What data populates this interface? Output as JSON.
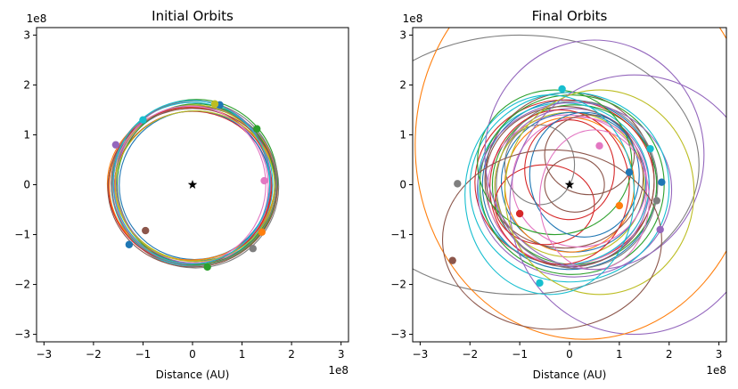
{
  "chart_data": [
    {
      "type": "scatter",
      "title": "Initial Orbits",
      "xlabel": "Distance (AU)",
      "ylabel": "",
      "xlim": [
        -3.15,
        3.15
      ],
      "ylim": [
        -3.15,
        3.15
      ],
      "x_ticks": [
        -3,
        -2,
        -1,
        0,
        1,
        2,
        3
      ],
      "y_ticks": [
        -3,
        -2,
        -1,
        0,
        1,
        2,
        3
      ],
      "x_offset_label": "1e8",
      "y_offset_label": "1e8",
      "star": {
        "x": 0,
        "y": 0,
        "marker": "black-star"
      },
      "orbits": [
        {
          "cx": 0.05,
          "cy": 0.02,
          "a": 1.62,
          "b": 1.55,
          "color": "#1f77b4"
        },
        {
          "cx": 0.02,
          "cy": -0.02,
          "a": 1.7,
          "b": 1.6,
          "color": "#ff7f0e"
        },
        {
          "cx": 0.08,
          "cy": 0.05,
          "a": 1.64,
          "b": 1.66,
          "color": "#2ca02c"
        },
        {
          "cx": 0.0,
          "cy": -0.05,
          "a": 1.58,
          "b": 1.52,
          "color": "#d62728"
        },
        {
          "cx": -0.04,
          "cy": 0.03,
          "a": 1.6,
          "b": 1.62,
          "color": "#9467bd"
        },
        {
          "cx": 0.03,
          "cy": 0.0,
          "a": 1.66,
          "b": 1.58,
          "color": "#8c564b"
        },
        {
          "cx": -0.02,
          "cy": -0.03,
          "a": 1.55,
          "b": 1.6,
          "color": "#e377c2"
        },
        {
          "cx": 0.06,
          "cy": -0.04,
          "a": 1.68,
          "b": 1.63,
          "color": "#7f7f7f"
        },
        {
          "cx": 0.01,
          "cy": 0.04,
          "a": 1.57,
          "b": 1.56,
          "color": "#bcbd22"
        },
        {
          "cx": -0.01,
          "cy": 0.01,
          "a": 1.63,
          "b": 1.64,
          "color": "#17becf"
        },
        {
          "cx": 0.04,
          "cy": -0.01,
          "a": 1.52,
          "b": 1.49,
          "color": "#1f77b4"
        },
        {
          "cx": -0.03,
          "cy": 0.02,
          "a": 1.69,
          "b": 1.53,
          "color": "#ff7f0e"
        },
        {
          "cx": 0.07,
          "cy": 0.01,
          "a": 1.59,
          "b": 1.61,
          "color": "#2ca02c"
        },
        {
          "cx": -0.05,
          "cy": -0.02,
          "a": 1.65,
          "b": 1.57,
          "color": "#d62728"
        },
        {
          "cx": 0.02,
          "cy": 0.06,
          "a": 1.56,
          "b": 1.63,
          "color": "#9467bd"
        },
        {
          "cx": 0.0,
          "cy": -0.06,
          "a": 1.71,
          "b": 1.59,
          "color": "#8c564b"
        },
        {
          "cx": -0.06,
          "cy": 0.0,
          "a": 1.54,
          "b": 1.58,
          "color": "#e377c2"
        },
        {
          "cx": 0.03,
          "cy": 0.03,
          "a": 1.67,
          "b": 1.65,
          "color": "#7f7f7f"
        },
        {
          "cx": 0.05,
          "cy": -0.03,
          "a": 1.61,
          "b": 1.51,
          "color": "#bcbd22"
        },
        {
          "cx": -0.02,
          "cy": 0.05,
          "a": 1.58,
          "b": 1.64,
          "color": "#17becf"
        }
      ],
      "points": [
        {
          "x": 0.55,
          "y": 1.6,
          "color": "#1f77b4"
        },
        {
          "x": 1.3,
          "y": 1.12,
          "color": "#2ca02c"
        },
        {
          "x": 1.45,
          "y": 0.08,
          "color": "#e377c2"
        },
        {
          "x": 1.4,
          "y": -0.95,
          "color": "#ff7f0e"
        },
        {
          "x": 1.22,
          "y": -1.28,
          "color": "#7f7f7f"
        },
        {
          "x": 0.3,
          "y": -1.65,
          "color": "#2ca02c"
        },
        {
          "x": -1.28,
          "y": -1.2,
          "color": "#1f77b4"
        },
        {
          "x": -0.95,
          "y": -0.92,
          "color": "#8c564b"
        },
        {
          "x": -1.55,
          "y": 0.8,
          "color": "#9467bd"
        },
        {
          "x": -1.0,
          "y": 1.3,
          "color": "#17becf"
        },
        {
          "x": 0.45,
          "y": 1.62,
          "color": "#bcbd22"
        }
      ]
    },
    {
      "type": "scatter",
      "title": "Final Orbits",
      "xlabel": "Distance (AU)",
      "ylabel": "",
      "xlim": [
        -3.15,
        3.15
      ],
      "ylim": [
        -3.15,
        3.15
      ],
      "x_ticks": [
        -3,
        -2,
        -1,
        0,
        1,
        2,
        3
      ],
      "y_ticks": [
        -3,
        -2,
        -1,
        0,
        1,
        2,
        3
      ],
      "x_offset_label": "1e8",
      "y_offset_label": "1e8",
      "star": {
        "x": 0,
        "y": 0,
        "marker": "black-star"
      },
      "orbits": [
        {
          "cx": 0.0,
          "cy": 0.0,
          "a": 1.75,
          "b": 1.7,
          "color": "#1f77b4"
        },
        {
          "cx": 0.1,
          "cy": 0.0,
          "a": 1.65,
          "b": 1.6,
          "color": "#2ca02c"
        },
        {
          "cx": -0.1,
          "cy": 0.05,
          "a": 1.8,
          "b": 1.65,
          "color": "#d62728"
        },
        {
          "cx": 0.05,
          "cy": -0.05,
          "a": 1.55,
          "b": 1.58,
          "color": "#9467bd"
        },
        {
          "cx": 0.0,
          "cy": 0.1,
          "a": 1.7,
          "b": 1.75,
          "color": "#8c564b"
        },
        {
          "cx": -0.05,
          "cy": -0.1,
          "a": 1.6,
          "b": 1.5,
          "color": "#e377c2"
        },
        {
          "cx": 0.15,
          "cy": 0.0,
          "a": 1.62,
          "b": 1.68,
          "color": "#7f7f7f"
        },
        {
          "cx": 0.0,
          "cy": 0.0,
          "a": 1.5,
          "b": 1.45,
          "color": "#bcbd22"
        },
        {
          "cx": -0.12,
          "cy": 0.02,
          "a": 1.72,
          "b": 1.62,
          "color": "#17becf"
        },
        {
          "cx": 0.08,
          "cy": 0.05,
          "a": 1.45,
          "b": 1.4,
          "color": "#1f77b4"
        },
        {
          "cx": 0.0,
          "cy": 0.0,
          "a": 1.3,
          "b": 1.35,
          "color": "#ff7f0e"
        },
        {
          "cx": 0.05,
          "cy": 0.0,
          "a": 1.85,
          "b": 1.8,
          "color": "#2ca02c"
        },
        {
          "cx": -0.2,
          "cy": -0.05,
          "a": 1.4,
          "b": 1.55,
          "color": "#d62728"
        },
        {
          "cx": 0.1,
          "cy": -0.1,
          "a": 1.95,
          "b": 1.75,
          "color": "#9467bd"
        },
        {
          "cx": -0.1,
          "cy": 0.15,
          "a": 1.58,
          "b": 1.42,
          "color": "#8c564b"
        },
        {
          "cx": 0.2,
          "cy": 0.05,
          "a": 1.35,
          "b": 1.3,
          "color": "#e377c2"
        },
        {
          "cx": 0.0,
          "cy": -0.05,
          "a": 2.0,
          "b": 1.9,
          "color": "#17becf"
        },
        {
          "cx": 0.0,
          "cy": 0.3,
          "a": 0.9,
          "b": 1.0,
          "color": "#d62728"
        },
        {
          "cx": -0.5,
          "cy": -0.4,
          "a": 1.0,
          "b": 0.8,
          "color": "#d62728"
        },
        {
          "cx": 0.4,
          "cy": 0.6,
          "a": 0.9,
          "b": 0.8,
          "color": "#8c564b"
        },
        {
          "cx": -0.6,
          "cy": 0.4,
          "a": 0.7,
          "b": 0.8,
          "color": "#7f7f7f"
        },
        {
          "cx": -0.3,
          "cy": 0.45,
          "a": 1.55,
          "b": 1.45,
          "color": "#2ca02c"
        },
        {
          "cx": 0.3,
          "cy": 0.2,
          "a": 1.1,
          "b": 1.25,
          "color": "#1f77b4"
        },
        {
          "cx": 0.5,
          "cy": -0.3,
          "a": 1.1,
          "b": 1.4,
          "color": "#e377c2"
        },
        {
          "cx": 0.1,
          "cy": 0.0,
          "a": 0.6,
          "b": 0.55,
          "color": "#8c564b"
        },
        {
          "cx": -1.0,
          "cy": 0.4,
          "a": 3.6,
          "b": 2.6,
          "color": "#7f7f7f"
        },
        {
          "cx": 1.3,
          "cy": -0.4,
          "a": 2.5,
          "b": 2.6,
          "color": "#9467bd"
        },
        {
          "cx": 0.5,
          "cy": 0.6,
          "a": 2.2,
          "b": 2.3,
          "color": "#9467bd"
        },
        {
          "cx": 0.6,
          "cy": -0.15,
          "a": 1.9,
          "b": 2.05,
          "color": "#bcbd22"
        },
        {
          "cx": 0.3,
          "cy": 0.8,
          "a": 3.4,
          "b": 3.9,
          "color": "#ff7f0e"
        },
        {
          "cx": -0.35,
          "cy": -1.1,
          "a": 2.2,
          "b": 1.8,
          "color": "#8c564b"
        },
        {
          "cx": -0.4,
          "cy": -0.2,
          "a": 1.7,
          "b": 2.0,
          "color": "#17becf"
        }
      ],
      "points": [
        {
          "x": -0.15,
          "y": 1.92,
          "color": "#17becf"
        },
        {
          "x": -2.25,
          "y": 0.02,
          "color": "#7f7f7f"
        },
        {
          "x": -1.0,
          "y": -0.58,
          "color": "#d62728"
        },
        {
          "x": -2.35,
          "y": -1.52,
          "color": "#8c564b"
        },
        {
          "x": -0.6,
          "y": -1.97,
          "color": "#17becf"
        },
        {
          "x": 1.0,
          "y": -0.42,
          "color": "#ff7f0e"
        },
        {
          "x": 1.82,
          "y": -0.9,
          "color": "#9467bd"
        },
        {
          "x": 1.75,
          "y": -0.32,
          "color": "#7f7f7f"
        },
        {
          "x": 1.85,
          "y": 0.05,
          "color": "#1f77b4"
        },
        {
          "x": 1.62,
          "y": 0.72,
          "color": "#17becf"
        },
        {
          "x": 1.2,
          "y": 0.25,
          "color": "#1f77b4"
        },
        {
          "x": 0.6,
          "y": 0.78,
          "color": "#e377c2"
        }
      ]
    }
  ]
}
